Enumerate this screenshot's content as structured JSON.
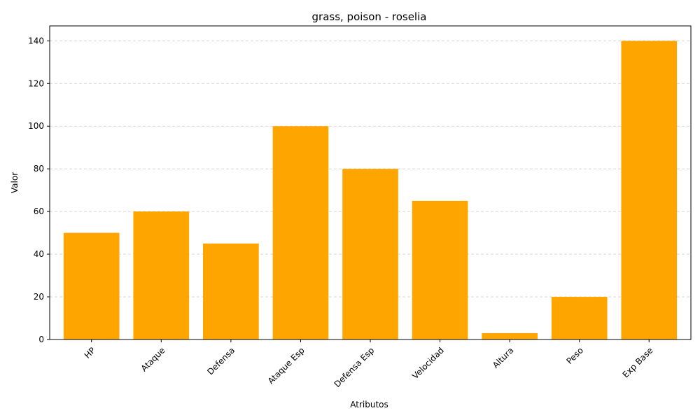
{
  "chart_data": {
    "type": "bar",
    "title": "grass, poison - roselia",
    "xlabel": "Atributos",
    "ylabel": "Valor",
    "categories": [
      "HP",
      "Ataque",
      "Defensa",
      "Ataque Esp",
      "Defensa Esp",
      "Velocidad",
      "Altura",
      "Peso",
      "Exp Base"
    ],
    "values": [
      50,
      60,
      45,
      100,
      80,
      65,
      3,
      20,
      140
    ],
    "ylim": [
      0,
      147
    ],
    "yticks": [
      0,
      20,
      40,
      60,
      80,
      100,
      120,
      140
    ],
    "bar_color": "#ffa500",
    "grid": "y-dashed",
    "tick_rotation_x": 45
  }
}
